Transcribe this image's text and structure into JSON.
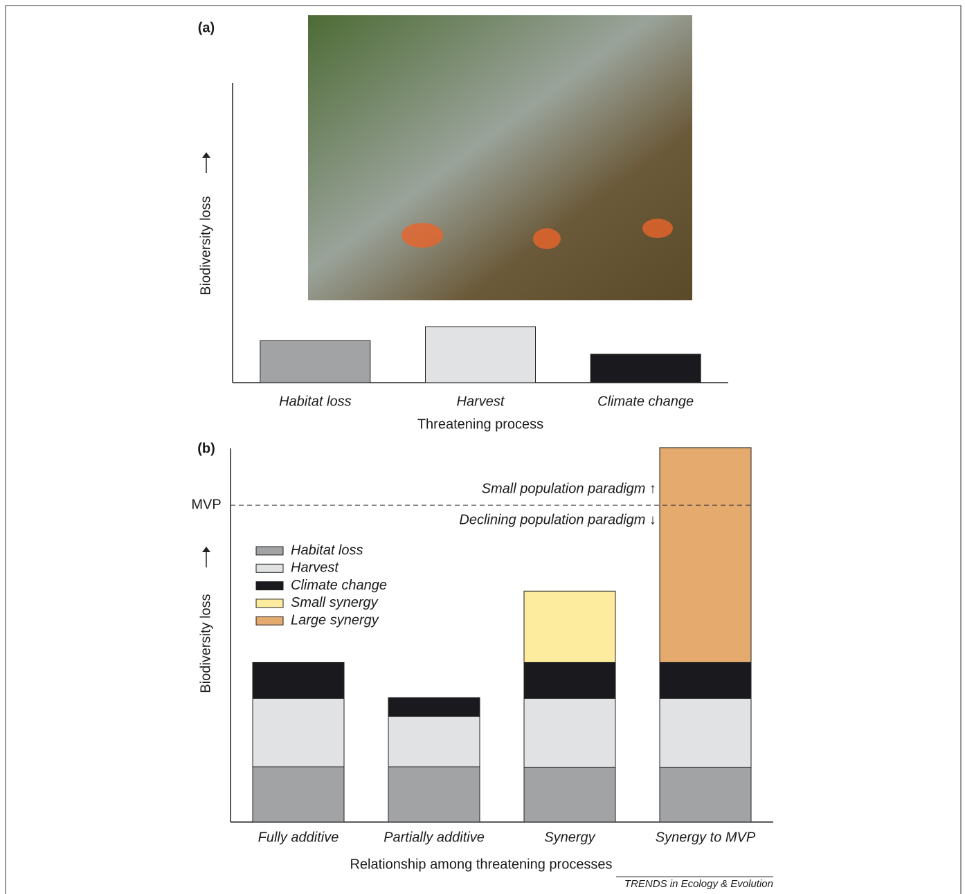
{
  "chart_data": [
    {
      "type": "bar",
      "panel_label": "(a)",
      "x_label": "Threatening process",
      "y_label": "Biodiversity loss",
      "categories": [
        "Habitat loss",
        "Harvest",
        "Climate change"
      ],
      "values": [
        14,
        18.7,
        9.5
      ],
      "colors": [
        "#a2a3a5",
        "#e1e2e4",
        "#1a1a1e"
      ],
      "ylim": [
        0,
        100
      ]
    },
    {
      "type": "stacked_bar",
      "panel_label": "(b)",
      "x_label": "Relationship among threatening processes",
      "y_label": "Biodiversity loss",
      "categories": [
        "Fully additive",
        "Partially additive",
        "Synergy",
        "Synergy to MVP"
      ],
      "series": [
        {
          "name": "Habitat loss",
          "color": "#a2a3a5",
          "values": [
            14.8,
            14.8,
            14.6,
            14.6
          ]
        },
        {
          "name": "Harvest",
          "color": "#e1e2e4",
          "values": [
            18.3,
            13.5,
            18.5,
            18.5
          ]
        },
        {
          "name": "Climate change",
          "color": "#1a1a1e",
          "values": [
            9.6,
            5,
            9.6,
            9.6
          ]
        },
        {
          "name": "Small synergy",
          "color": "#fdeb9e",
          "values": [
            null,
            null,
            19.1,
            null
          ]
        },
        {
          "name": "Large synergy",
          "color": "#e4aa6e",
          "values": [
            null,
            null,
            null,
            57.5
          ]
        }
      ],
      "reference_line": {
        "label": "MVP",
        "value": 84.8
      },
      "annotations": [
        "Small population paradigm ↑",
        "Declining population paradigm ↓"
      ],
      "ylim": [
        0,
        100
      ]
    }
  ],
  "source": "TRENDS in Ecology & Evolution"
}
